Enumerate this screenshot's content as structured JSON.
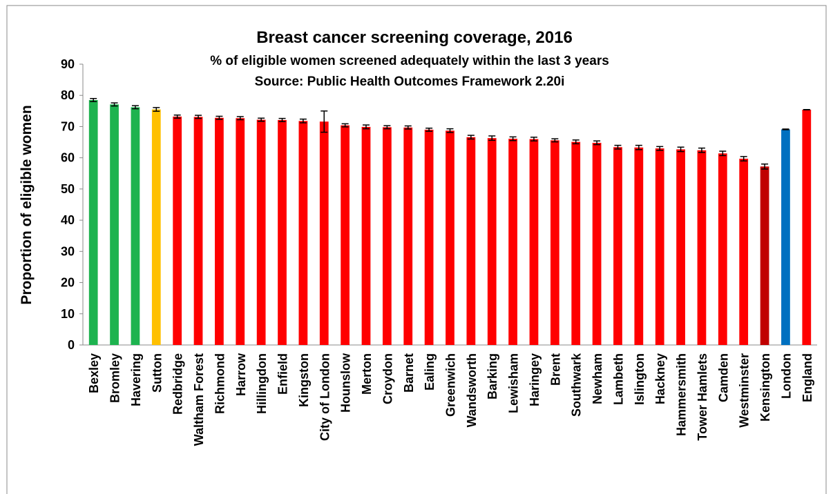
{
  "chart_data": {
    "type": "bar",
    "title": "Breast cancer screening coverage, 2016",
    "subtitle": "% of eligible women screened adequately within the last 3 years",
    "source": "Source: Public Health Outcomes Framework 2.20i",
    "y_label": "Proportion of eligible women",
    "categories": [
      "Bexley",
      "Bromley",
      "Havering",
      "Sutton",
      "Redbridge",
      "Waltham Forest",
      "Richmond",
      "Harrow",
      "Hillingdon",
      "Enfield",
      "Kingston",
      "City of London",
      "Hounslow",
      "Merton",
      "Croydon",
      "Barnet",
      "Ealing",
      "Greenwich",
      "Wandsworth",
      "Barking",
      "Lewisham",
      "Haringey",
      "Brent",
      "Southwark",
      "Newham",
      "Lambeth",
      "Islington",
      "Hackney",
      "Hammersmith",
      "Tower Hamlets",
      "Camden",
      "Westminster",
      "Kensington",
      "London",
      "England"
    ],
    "values": [
      78.5,
      77.1,
      76.2,
      75.5,
      73.2,
      73.1,
      72.8,
      72.7,
      72.2,
      72.1,
      71.8,
      71.6,
      70.4,
      69.9,
      69.8,
      69.7,
      69.0,
      68.7,
      66.6,
      66.3,
      66.1,
      66.0,
      65.6,
      65.1,
      64.8,
      63.4,
      63.3,
      63.0,
      62.7,
      62.4,
      61.4,
      59.7,
      57.2,
      69.1,
      75.4
    ],
    "errors": [
      0.5,
      0.5,
      0.5,
      0.6,
      0.5,
      0.5,
      0.5,
      0.5,
      0.5,
      0.5,
      0.6,
      3.4,
      0.5,
      0.6,
      0.5,
      0.5,
      0.5,
      0.6,
      0.6,
      0.7,
      0.6,
      0.6,
      0.5,
      0.6,
      0.6,
      0.6,
      0.7,
      0.6,
      0.7,
      0.7,
      0.7,
      0.7,
      0.8,
      0.1,
      0.05
    ],
    "colors": [
      "#1db34f",
      "#1db34f",
      "#1db34f",
      "#ffc000",
      "#ff0000",
      "#ff0000",
      "#ff0000",
      "#ff0000",
      "#ff0000",
      "#ff0000",
      "#ff0000",
      "#ff0000",
      "#ff0000",
      "#ff0000",
      "#ff0000",
      "#ff0000",
      "#ff0000",
      "#ff0000",
      "#ff0000",
      "#ff0000",
      "#ff0000",
      "#ff0000",
      "#ff0000",
      "#ff0000",
      "#ff0000",
      "#ff0000",
      "#ff0000",
      "#ff0000",
      "#ff0000",
      "#ff0000",
      "#ff0000",
      "#ff0000",
      "#c00000",
      "#0070c0",
      "#ff0000"
    ],
    "ylim": [
      0,
      90
    ],
    "yticks": [
      0,
      10,
      20,
      30,
      40,
      50,
      60,
      70,
      80,
      90
    ],
    "grid": false
  }
}
